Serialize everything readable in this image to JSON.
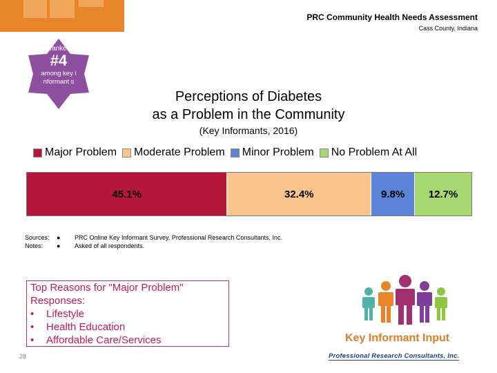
{
  "header": {
    "title": "PRC Community Health Needs Assessment",
    "location": "Cass County, Indiana"
  },
  "badge": {
    "ranked": "Ranked",
    "rank": "#4",
    "among": "among key informant s",
    "color": "#8e4fa0"
  },
  "chart_data": {
    "type": "bar",
    "stacked": true,
    "orientation": "horizontal",
    "title": "Perceptions of Diabetes",
    "title_line2": "as a Problem in the Community",
    "subtitle": "(Key Informants, 2016)",
    "legend_position": "top",
    "categories": [
      ""
    ],
    "series": [
      {
        "name": "Major Problem",
        "values": [
          45.1
        ],
        "label": "45.1%",
        "color": "#b5173b"
      },
      {
        "name": "Moderate Problem",
        "values": [
          32.4
        ],
        "label": "32.4%",
        "color": "#fbc58e"
      },
      {
        "name": "Minor Problem",
        "values": [
          9.8
        ],
        "label": "9.8%",
        "color": "#5b83d6"
      },
      {
        "name": "No Problem At All",
        "values": [
          12.7
        ],
        "label": "12.7%",
        "color": "#a6d86f"
      }
    ],
    "xlim": [
      0,
      100
    ]
  },
  "sources": {
    "sources_label": "Sources:",
    "notes_label": "Notes:",
    "bullet": "●",
    "sources_text": "PRC Online Key Informant Survey, Professional Research Consultants, Inc.",
    "notes_text": "Asked of all respondents."
  },
  "reasons": {
    "heading": "Top Reasons for \"Major Problem\" Responses:",
    "items": [
      "Lifestyle",
      "Health Education",
      "Affordable Care/Services"
    ]
  },
  "footer": {
    "page_number": "28",
    "key_informant_label": "Key Informant Input",
    "company": "Professional Research Consultants, Inc."
  }
}
